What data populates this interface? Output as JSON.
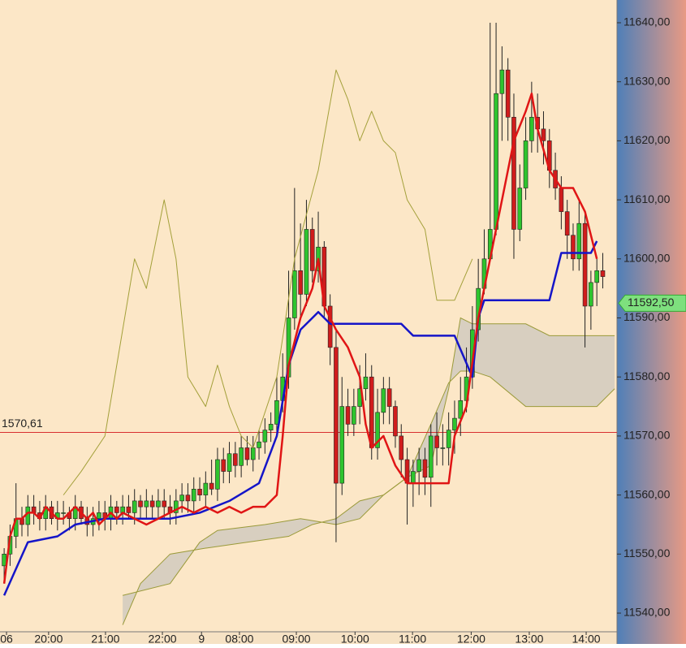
{
  "chart_data": {
    "type": "candlestick",
    "up_color": "#2ec42e",
    "down_color": "#d01c1c",
    "background": "#fce7c7",
    "xlim": [
      -0.7,
      103.4
    ],
    "xticks": [
      {
        "value": 0.4,
        "label": "06"
      },
      {
        "value": 7.5,
        "label": "20:00"
      },
      {
        "value": 17.1,
        "label": "21:00"
      },
      {
        "value": 26.7,
        "label": "22:00"
      },
      {
        "value": 33.3,
        "label": "9"
      },
      {
        "value": 39.7,
        "label": "08:00"
      },
      {
        "value": 49.3,
        "label": "09:00"
      },
      {
        "value": 59.2,
        "label": "10:00"
      },
      {
        "value": 68.9,
        "label": "11:00"
      },
      {
        "value": 78.8,
        "label": "12:00"
      },
      {
        "value": 88.6,
        "label": "13:00"
      },
      {
        "value": 98.2,
        "label": "14:00"
      }
    ],
    "ylim": [
      11536.84,
      11643.85
    ],
    "yticks": [
      {
        "value": 11540,
        "label": "11540,00"
      },
      {
        "value": 11550,
        "label": "11550,00"
      },
      {
        "value": 11560,
        "label": "11560,00"
      },
      {
        "value": 11570,
        "label": "11570,00"
      },
      {
        "value": 11580,
        "label": "11580,00"
      },
      {
        "value": 11590,
        "label": "11590,00"
      },
      {
        "value": 11600,
        "label": "11600,00"
      },
      {
        "value": 11610,
        "label": "11610,00"
      },
      {
        "value": 11620,
        "label": "11620,00"
      },
      {
        "value": 11630,
        "label": "11630,00"
      },
      {
        "value": 11640,
        "label": "11640,00"
      }
    ],
    "open": [
      11548,
      11550,
      11553,
      11556,
      11555,
      11558,
      11557,
      11556,
      11558,
      11556,
      11557,
      11557,
      11556,
      11558,
      11556,
      11555,
      11556,
      11557,
      11556,
      11558,
      11557,
      11558,
      11557,
      11559,
      11558,
      11559,
      11558,
      11559,
      11558,
      11557,
      11559,
      11560,
      11559,
      11561,
      11560,
      11562,
      11561,
      11566,
      11564,
      11567,
      11565,
      11568,
      11566,
      11568,
      11569,
      11571,
      11572,
      11576,
      11580,
      11590,
      11598,
      11594,
      11605,
      11598,
      11602,
      11592,
      11585,
      11562,
      11575,
      11572,
      11575,
      11578,
      11580,
      11568,
      11574,
      11578,
      11575,
      11570,
      11566,
      11562,
      11564,
      11566,
      11563,
      11570,
      11568,
      11568,
      11571,
      11573,
      11576,
      11580,
      11588,
      11595,
      11600,
      11605,
      11628,
      11632,
      11624,
      11605,
      11612,
      11620,
      11624,
      11622,
      11620,
      11615,
      11612,
      11608,
      11604,
      11600,
      11606,
      11592,
      11596,
      11598
    ],
    "high": [
      11551,
      11555,
      11562,
      11558,
      11560,
      11560,
      11559,
      11560,
      11559,
      11559,
      11559,
      11558,
      11560,
      11559,
      11558,
      11558,
      11559,
      11559,
      11560,
      11559,
      11560,
      11560,
      11561,
      11560,
      11561,
      11560,
      11561,
      11561,
      11560,
      11561,
      11562,
      11562,
      11563,
      11563,
      11564,
      11566,
      11568,
      11568,
      11569,
      11569,
      11570,
      11570,
      11570,
      11571,
      11573,
      11574,
      11580,
      11584,
      11598,
      11612,
      11606,
      11610,
      11607,
      11608,
      11603,
      11594,
      11588,
      11580,
      11578,
      11578,
      11582,
      11584,
      11582,
      11578,
      11580,
      11580,
      11576,
      11572,
      11568,
      11566,
      11568,
      11568,
      11572,
      11574,
      11572,
      11574,
      11576,
      11580,
      11585,
      11592,
      11600,
      11605,
      11640,
      11640,
      11636,
      11634,
      11628,
      11616,
      11624,
      11630,
      11628,
      11625,
      11622,
      11618,
      11614,
      11610,
      11606,
      11610,
      11608,
      11598,
      11600,
      11601
    ],
    "low": [
      11545,
      11548,
      11551,
      11553,
      11553,
      11555,
      11554,
      11554,
      11555,
      11554,
      11555,
      11554,
      11554,
      11555,
      11553,
      11553,
      11554,
      11554,
      11554,
      11555,
      11555,
      11556,
      11555,
      11556,
      11556,
      11556,
      11556,
      11556,
      11555,
      11555,
      11557,
      11557,
      11557,
      11559,
      11558,
      11560,
      11559,
      11562,
      11562,
      11563,
      11563,
      11565,
      11564,
      11566,
      11567,
      11569,
      11570,
      11574,
      11578,
      11588,
      11590,
      11592,
      11596,
      11596,
      11590,
      11582,
      11552,
      11560,
      11570,
      11570,
      11572,
      11576,
      11566,
      11566,
      11572,
      11572,
      11568,
      11563,
      11555,
      11558,
      11560,
      11560,
      11558,
      11565,
      11565,
      11565,
      11567,
      11570,
      11574,
      11578,
      11586,
      11594,
      11600,
      11604,
      11620,
      11620,
      11600,
      11603,
      11610,
      11618,
      11618,
      11616,
      11612,
      11610,
      11605,
      11600,
      11598,
      11598,
      11585,
      11588,
      11592,
      11595
    ],
    "close": [
      11550,
      11553,
      11556,
      11555,
      11558,
      11557,
      11556,
      11558,
      11556,
      11557,
      11557,
      11556,
      11558,
      11556,
      11555,
      11556,
      11557,
      11556,
      11558,
      11557,
      11558,
      11557,
      11559,
      11558,
      11559,
      11558,
      11559,
      11558,
      11557,
      11559,
      11560,
      11559,
      11561,
      11560,
      11562,
      11561,
      11566,
      11564,
      11567,
      11565,
      11568,
      11566,
      11568,
      11569,
      11571,
      11572,
      11576,
      11580,
      11590,
      11598,
      11594,
      11605,
      11598,
      11602,
      11592,
      11585,
      11562,
      11575,
      11572,
      11575,
      11578,
      11580,
      11568,
      11574,
      11578,
      11575,
      11570,
      11566,
      11562,
      11564,
      11566,
      11563,
      11570,
      11568,
      11568,
      11571,
      11573,
      11576,
      11580,
      11588,
      11595,
      11600,
      11605,
      11628,
      11632,
      11624,
      11605,
      11612,
      11620,
      11624,
      11622,
      11620,
      11615,
      11612,
      11608,
      11604,
      11600,
      11606,
      11592,
      11596,
      11598,
      11597
    ],
    "cloud": {
      "color": "#d8cfc0",
      "edge": "#9a9a3a",
      "upper": {
        "x": [
          20,
          28,
          33,
          36,
          44,
          50,
          56,
          60,
          64,
          68,
          72,
          75,
          77,
          79,
          81,
          88,
          92,
          96,
          103
        ],
        "values": [
          11543,
          11545,
          11552,
          11554,
          11555,
          11556,
          11555,
          11556,
          11560,
          11563,
          11565,
          11578,
          11590,
          11589,
          11589,
          11589,
          11587,
          11587,
          11587
        ]
      },
      "lower": {
        "x": [
          20,
          23,
          28,
          34,
          41,
          48,
          52,
          56,
          60,
          64,
          68,
          72,
          75,
          77,
          79,
          82,
          88,
          93,
          100,
          103
        ],
        "values": [
          11538,
          11545,
          11550,
          11551,
          11552,
          11553,
          11555,
          11556,
          11559,
          11560,
          11563,
          11572,
          11579,
          11581,
          11581,
          11580,
          11575,
          11575,
          11575,
          11578
        ]
      }
    },
    "series": [
      {
        "color": "#a3a03a",
        "width": 1,
        "x": [
          10,
          13,
          17,
          22,
          24,
          27,
          29,
          31,
          34,
          36,
          38,
          40,
          42,
          46,
          49,
          53,
          56,
          58,
          60,
          62,
          64,
          66,
          68,
          71,
          73,
          76,
          79
        ],
        "values": [
          11560,
          11564,
          11570,
          11600,
          11595,
          11610,
          11600,
          11580,
          11575,
          11582,
          11575,
          11570,
          11568,
          11580,
          11600,
          11615,
          11632,
          11627,
          11620,
          11625,
          11620,
          11618,
          11610,
          11605,
          11593,
          11593,
          11600
        ]
      },
      {
        "color": "#1515c8",
        "width": 2.5,
        "x": [
          0,
          4,
          9,
          12,
          17,
          22,
          28,
          33,
          38,
          43,
          46,
          48,
          50,
          53,
          55,
          60,
          67,
          69,
          76,
          79,
          80,
          81,
          92,
          94,
          99,
          100
        ],
        "values": [
          11543,
          11552,
          11553,
          11555,
          11556,
          11556,
          11556,
          11557,
          11559,
          11562,
          11570,
          11582,
          11588,
          11591,
          11589,
          11589,
          11589,
          11587,
          11587,
          11580,
          11590,
          11593,
          11593,
          11601,
          11601,
          11603
        ]
      },
      {
        "color": "#e01515",
        "width": 2.5,
        "x": [
          0,
          1,
          2,
          3,
          4,
          5,
          6,
          7,
          8,
          9,
          10,
          11,
          12,
          13,
          14,
          15,
          16,
          17,
          18,
          19,
          20,
          22,
          24,
          26,
          28,
          30,
          32,
          34,
          36,
          38,
          40,
          42,
          44,
          46,
          47,
          48,
          50,
          52,
          53,
          54,
          56,
          58,
          60,
          61,
          62,
          64,
          66,
          68,
          70,
          72,
          75,
          76,
          78,
          80,
          82,
          84,
          86,
          88,
          89,
          90,
          92,
          94,
          96,
          98,
          100
        ],
        "values": [
          11545,
          11553,
          11556,
          11556,
          11557,
          11557,
          11556,
          11558,
          11557,
          11556,
          11556,
          11557,
          11558,
          11557,
          11556,
          11557,
          11555,
          11556,
          11557,
          11556,
          11557,
          11556,
          11555,
          11556,
          11557,
          11558,
          11557,
          11558,
          11557,
          11558,
          11557,
          11558,
          11558,
          11560,
          11570,
          11582,
          11590,
          11595,
          11600,
          11592,
          11588,
          11585,
          11580,
          11572,
          11568,
          11570,
          11565,
          11562,
          11562,
          11562,
          11562,
          11570,
          11575,
          11590,
          11600,
          11610,
          11620,
          11625,
          11628,
          11622,
          11615,
          11612,
          11612,
          11608,
          11600
        ]
      }
    ],
    "level": {
      "value": 11570.61,
      "label": "1570,61",
      "color": "#d83030"
    },
    "last_price": {
      "value": 11592.5,
      "label": "11592,50",
      "color": "#7ee07e"
    }
  }
}
